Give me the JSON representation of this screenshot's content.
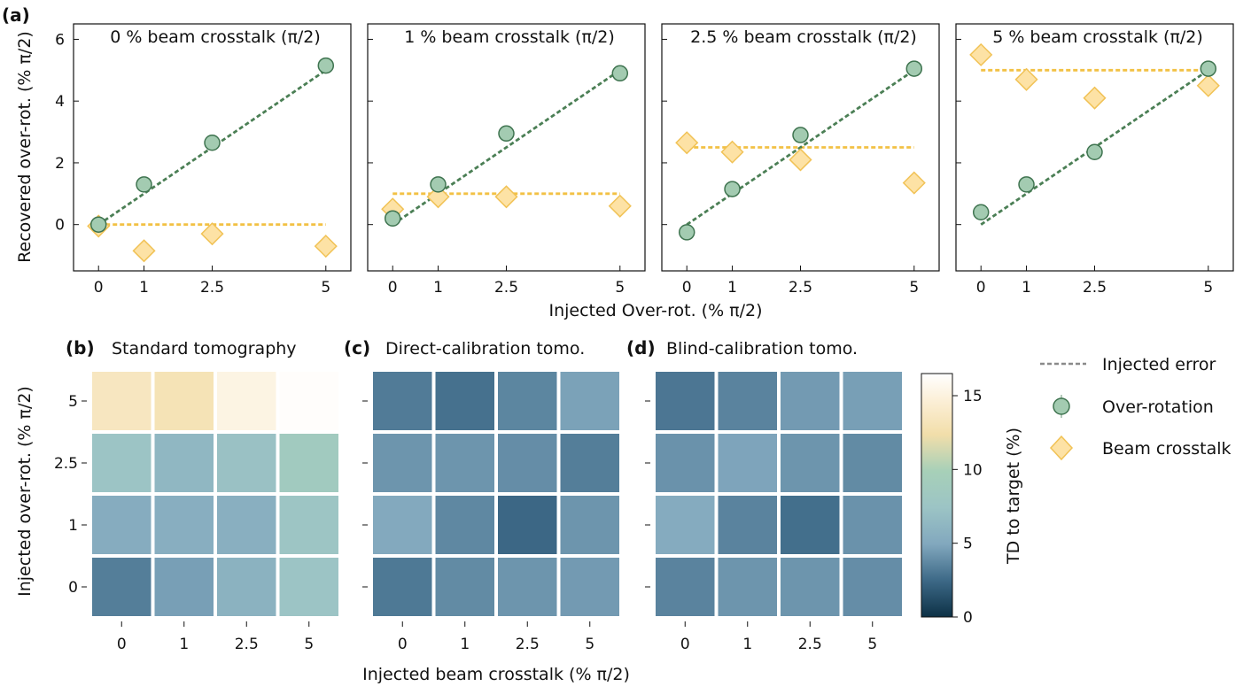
{
  "panel_labels": [
    "(a)",
    "(b)",
    "(c)",
    "(d)"
  ],
  "chart_data": [
    {
      "type": "scatter",
      "panel": "(a)",
      "title": "0 % beam crosstalk (π/2)",
      "xlabel": "Injected Over-rot. (% π/2)",
      "ylabel": "Recovered over-rot. (% π/2)",
      "x": [
        0,
        1,
        2.5,
        5
      ],
      "xticks": [
        "0",
        "1",
        "2.5",
        "5"
      ],
      "ylim": [
        -1.5,
        6.5
      ],
      "yticks": [
        0,
        2,
        4,
        6
      ],
      "series": [
        {
          "name": "Over-rotation",
          "values": [
            0.0,
            1.3,
            2.65,
            5.15
          ]
        },
        {
          "name": "Beam crosstalk",
          "values": [
            -0.05,
            -0.85,
            -0.3,
            -0.7
          ]
        }
      ],
      "lines": [
        {
          "name": "Over-rotation injected",
          "x": [
            0,
            5
          ],
          "y": [
            0,
            5
          ]
        },
        {
          "name": "Beam crosstalk injected",
          "x": [
            0,
            5
          ],
          "y": [
            0,
            0
          ]
        }
      ]
    },
    {
      "type": "scatter",
      "panel": "(a)",
      "title": "1 % beam crosstalk (π/2)",
      "xlabel": "Injected Over-rot. (% π/2)",
      "x": [
        0,
        1,
        2.5,
        5
      ],
      "xticks": [
        "0",
        "1",
        "2.5",
        "5"
      ],
      "ylim": [
        -1.5,
        6.5
      ],
      "series": [
        {
          "name": "Over-rotation",
          "values": [
            0.2,
            1.3,
            2.95,
            4.9
          ]
        },
        {
          "name": "Beam crosstalk",
          "values": [
            0.5,
            0.9,
            0.9,
            0.6
          ]
        }
      ],
      "lines": [
        {
          "name": "Over-rotation injected",
          "x": [
            0,
            5
          ],
          "y": [
            0,
            5
          ]
        },
        {
          "name": "Beam crosstalk injected",
          "x": [
            0,
            5
          ],
          "y": [
            1,
            1
          ]
        }
      ]
    },
    {
      "type": "scatter",
      "panel": "(a)",
      "title": "2.5 % beam crosstalk (π/2)",
      "xlabel": "Injected Over-rot. (% π/2)",
      "x": [
        0,
        1,
        2.5,
        5
      ],
      "xticks": [
        "0",
        "1",
        "2.5",
        "5"
      ],
      "ylim": [
        -1.5,
        6.5
      ],
      "series": [
        {
          "name": "Over-rotation",
          "values": [
            -0.25,
            1.15,
            2.9,
            5.05
          ]
        },
        {
          "name": "Beam crosstalk",
          "values": [
            2.65,
            2.35,
            2.1,
            1.35
          ]
        }
      ],
      "lines": [
        {
          "name": "Over-rotation injected",
          "x": [
            0,
            5
          ],
          "y": [
            0,
            5
          ]
        },
        {
          "name": "Beam crosstalk injected",
          "x": [
            0,
            5
          ],
          "y": [
            2.5,
            2.5
          ]
        }
      ]
    },
    {
      "type": "scatter",
      "panel": "(a)",
      "title": "5 % beam crosstalk (π/2)",
      "xlabel": "Injected Over-rot. (% π/2)",
      "x": [
        0,
        1,
        2.5,
        5
      ],
      "xticks": [
        "0",
        "1",
        "2.5",
        "5"
      ],
      "ylim": [
        -1.5,
        6.5
      ],
      "series": [
        {
          "name": "Over-rotation",
          "values": [
            0.4,
            1.3,
            2.35,
            5.05
          ]
        },
        {
          "name": "Beam crosstalk",
          "values": [
            5.5,
            4.7,
            4.1,
            4.5
          ]
        }
      ],
      "lines": [
        {
          "name": "Over-rotation injected",
          "x": [
            0,
            5
          ],
          "y": [
            0,
            5
          ]
        },
        {
          "name": "Beam crosstalk injected",
          "x": [
            0,
            5
          ],
          "y": [
            5,
            5
          ]
        }
      ]
    },
    {
      "type": "heatmap",
      "panel": "(b)",
      "title": "Standard tomography",
      "xlabel": "Injected beam crosstalk (% π/2)",
      "ylabel": "Injected over-rot. (% π/2)",
      "x_categories": [
        "0",
        "1",
        "2.5",
        "5"
      ],
      "y_categories": [
        "5",
        "2.5",
        "1",
        "0"
      ],
      "values": [
        [
          13.5,
          13.0,
          15.2,
          16.3
        ],
        [
          7.5,
          6.3,
          7.2,
          8.6
        ],
        [
          5.3,
          5.5,
          5.6,
          7.6
        ],
        [
          3.3,
          4.6,
          5.8,
          7.4
        ]
      ]
    },
    {
      "type": "heatmap",
      "panel": "(c)",
      "title": "Direct-calibration tomo.",
      "xlabel": "Injected beam crosstalk (% π/2)",
      "x_categories": [
        "0",
        "1",
        "2.5",
        "5"
      ],
      "y_categories": [
        "5",
        "2.5",
        "1",
        "0"
      ],
      "values": [
        [
          3.2,
          2.8,
          3.6,
          4.7
        ],
        [
          4.2,
          4.2,
          3.9,
          3.3
        ],
        [
          5.0,
          3.7,
          2.4,
          4.2
        ],
        [
          3.1,
          3.8,
          4.2,
          4.4
        ]
      ]
    },
    {
      "type": "heatmap",
      "panel": "(d)",
      "title": "Blind-calibration tomo.",
      "xlabel": "Injected beam crosstalk (% π/2)",
      "x_categories": [
        "0",
        "1",
        "2.5",
        "5"
      ],
      "y_categories": [
        "5",
        "2.5",
        "1",
        "0"
      ],
      "values": [
        [
          3.0,
          3.5,
          4.4,
          4.6
        ],
        [
          4.1,
          4.8,
          4.2,
          3.8
        ],
        [
          5.2,
          3.5,
          2.7,
          4.1
        ],
        [
          3.5,
          4.2,
          4.2,
          3.9
        ]
      ]
    },
    {
      "type": "colorbar",
      "label": "TD to target (%)",
      "range": [
        0,
        16.5
      ],
      "ticks": [
        0,
        5,
        10,
        15
      ]
    }
  ],
  "legend": {
    "injected_error": "Injected error",
    "over_rotation": "Over-rotation",
    "beam_crosstalk": "Beam crosstalk"
  },
  "colors": {
    "over_rotation_fill": "#a3cbb1",
    "over_rotation_edge": "#3f7450",
    "over_rotation_line": "#4b7f55",
    "crosstalk_fill": "#fde2a5",
    "crosstalk_edge": "#f1c255",
    "crosstalk_line": "#f2c144",
    "injected_legend_line": "#8a8a8a"
  }
}
